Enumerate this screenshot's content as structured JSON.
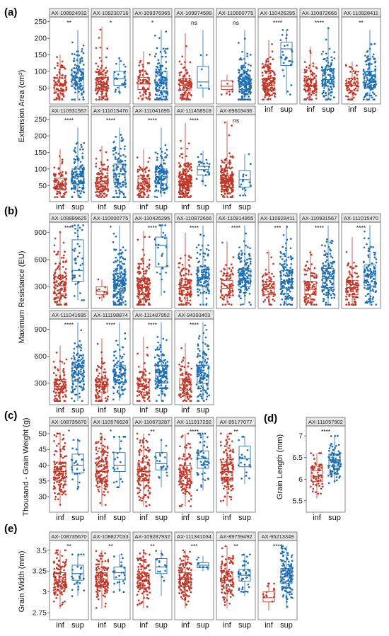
{
  "colors": {
    "inf": "#c0392b",
    "sup": "#1f6fb2",
    "strip_bg": "#e6e6e6",
    "border": "#555555"
  },
  "group_labels": [
    "inf",
    "sup"
  ],
  "chart_data": [
    {
      "panel": "(a)",
      "type": "box",
      "ylabel": "Extension  Area  (cm²)",
      "yticks": [
        50,
        100,
        150,
        200,
        250
      ],
      "ylim": [
        10,
        260
      ],
      "markers": [
        {
          "name": "AX-108924932",
          "sig": "**",
          "inf": {
            "q1": 40,
            "median": 58,
            "q3": 78,
            "n": 90,
            "min": 15,
            "max": 150
          },
          "sup": {
            "q1": 55,
            "median": 80,
            "q3": 108,
            "n": 120,
            "min": 15,
            "max": 225
          }
        },
        {
          "name": "AX-109230716",
          "sig": "*",
          "inf": {
            "q1": 42,
            "median": 60,
            "q3": 82,
            "n": 130,
            "min": 15,
            "max": 235
          },
          "sup": {
            "q1": 58,
            "median": 78,
            "q3": 100,
            "n": 25,
            "min": 30,
            "max": 140
          }
        },
        {
          "name": "AX-109376365",
          "sig": "*",
          "inf": {
            "q1": 45,
            "median": 62,
            "q3": 82,
            "n": 70,
            "min": 15,
            "max": 160
          },
          "sup": {
            "q1": 42,
            "median": 62,
            "q3": 100,
            "n": 130,
            "min": 15,
            "max": 225
          }
        },
        {
          "name": "AX-109974589",
          "sig": "ns",
          "inf": {
            "q1": 42,
            "median": 58,
            "q3": 78,
            "n": 110,
            "min": 15,
            "max": 215
          },
          "sup": {
            "q1": 50,
            "median": 68,
            "q3": 115,
            "n": 5,
            "min": 20,
            "max": 225
          }
        },
        {
          "name": "AX-110000775",
          "sig": "ns",
          "inf": {
            "q1": 45,
            "median": 55,
            "q3": 72,
            "n": 8,
            "min": 30,
            "max": 90
          },
          "sup": {
            "q1": 45,
            "median": 62,
            "q3": 85,
            "n": 180,
            "min": 15,
            "max": 225
          }
        },
        {
          "name": "AX-110426295",
          "sig": "****",
          "inf": {
            "q1": 42,
            "median": 58,
            "q3": 80,
            "n": 160,
            "min": 15,
            "max": 195
          },
          "sup": {
            "q1": 118,
            "median": 168,
            "q3": 188,
            "n": 28,
            "min": 30,
            "max": 225
          }
        },
        {
          "name": "AX-110872666",
          "sig": "****",
          "inf": {
            "q1": 42,
            "median": 58,
            "q3": 78,
            "n": 110,
            "min": 15,
            "max": 175
          },
          "sup": {
            "q1": 55,
            "median": 75,
            "q3": 105,
            "n": 120,
            "min": 15,
            "max": 235
          }
        },
        {
          "name": "AX-110928411",
          "sig": "**",
          "inf": {
            "q1": 42,
            "median": 58,
            "q3": 78,
            "n": 70,
            "min": 15,
            "max": 130
          },
          "sup": {
            "q1": 50,
            "median": 72,
            "q3": 100,
            "n": 140,
            "min": 15,
            "max": 225
          }
        },
        {
          "name": "AX-110931567",
          "sig": "****",
          "inf": {
            "q1": 38,
            "median": 52,
            "q3": 72,
            "n": 90,
            "min": 15,
            "max": 160
          },
          "sup": {
            "q1": 55,
            "median": 78,
            "q3": 100,
            "n": 140,
            "min": 15,
            "max": 225
          }
        },
        {
          "name": "AX-111015470",
          "sig": "****",
          "inf": {
            "q1": 40,
            "median": 55,
            "q3": 75,
            "n": 110,
            "min": 15,
            "max": 170
          },
          "sup": {
            "q1": 58,
            "median": 85,
            "q3": 115,
            "n": 110,
            "min": 15,
            "max": 225
          }
        },
        {
          "name": "AX-111041695",
          "sig": "****",
          "inf": {
            "q1": 40,
            "median": 55,
            "q3": 72,
            "n": 100,
            "min": 15,
            "max": 160
          },
          "sup": {
            "q1": 55,
            "median": 78,
            "q3": 100,
            "n": 130,
            "min": 15,
            "max": 225
          }
        },
        {
          "name": "AX-111458518",
          "sig": "****",
          "inf": {
            "q1": 45,
            "median": 62,
            "q3": 82,
            "n": 200,
            "min": 15,
            "max": 240
          },
          "sup": {
            "q1": 82,
            "median": 98,
            "q3": 108,
            "n": 25,
            "min": 50,
            "max": 155
          }
        },
        {
          "name": "AX-89603436",
          "sig": "ns",
          "inf": {
            "q1": 45,
            "median": 62,
            "q3": 82,
            "n": 200,
            "min": 15,
            "max": 245
          },
          "sup": {
            "q1": 45,
            "median": 68,
            "q3": 95,
            "n": 18,
            "min": 20,
            "max": 145
          }
        }
      ]
    },
    {
      "panel": "(b)",
      "type": "box",
      "ylabel": "Maximum  Resistance  (EU)",
      "yticks": [
        300,
        600,
        900
      ],
      "ylim": [
        90,
        1000
      ],
      "markers": [
        {
          "name": "AX-109999625",
          "sig": "****",
          "inf": {
            "q1": 220,
            "median": 310,
            "q3": 410,
            "n": 130,
            "min": 100,
            "max": 920
          },
          "sup": {
            "q1": 360,
            "median": 480,
            "q3": 820,
            "n": 40,
            "min": 150,
            "max": 980
          }
        },
        {
          "name": "AX-110000775",
          "sig": "*",
          "inf": {
            "q1": 210,
            "median": 250,
            "q3": 300,
            "n": 10,
            "min": 140,
            "max": 380
          },
          "sup": {
            "q1": 250,
            "median": 330,
            "q3": 450,
            "n": 190,
            "min": 100,
            "max": 980
          }
        },
        {
          "name": "AX-110426295",
          "sig": "****",
          "inf": {
            "q1": 210,
            "median": 290,
            "q3": 390,
            "n": 160,
            "min": 100,
            "max": 920
          },
          "sup": {
            "q1": 520,
            "median": 760,
            "q3": 850,
            "n": 28,
            "min": 200,
            "max": 980
          }
        },
        {
          "name": "AX-110872666",
          "sig": "****",
          "inf": {
            "q1": 210,
            "median": 290,
            "q3": 380,
            "n": 120,
            "min": 100,
            "max": 900
          },
          "sup": {
            "q1": 310,
            "median": 400,
            "q3": 520,
            "n": 120,
            "min": 100,
            "max": 980
          }
        },
        {
          "name": "AX-110914955",
          "sig": "****",
          "inf": {
            "q1": 200,
            "median": 280,
            "q3": 370,
            "n": 70,
            "min": 100,
            "max": 800
          },
          "sup": {
            "q1": 300,
            "median": 390,
            "q3": 500,
            "n": 140,
            "min": 100,
            "max": 980
          }
        },
        {
          "name": "AX-110928411",
          "sig": "***",
          "inf": {
            "q1": 210,
            "median": 280,
            "q3": 360,
            "n": 70,
            "min": 100,
            "max": 700
          },
          "sup": {
            "q1": 280,
            "median": 360,
            "q3": 480,
            "n": 140,
            "min": 100,
            "max": 980
          }
        },
        {
          "name": "AX-110931567",
          "sig": "****",
          "inf": {
            "q1": 210,
            "median": 270,
            "q3": 360,
            "n": 90,
            "min": 100,
            "max": 700
          },
          "sup": {
            "q1": 290,
            "median": 390,
            "q3": 500,
            "n": 140,
            "min": 100,
            "max": 980
          }
        },
        {
          "name": "AX-111015470",
          "sig": "****",
          "inf": {
            "q1": 210,
            "median": 290,
            "q3": 370,
            "n": 110,
            "min": 100,
            "max": 850
          },
          "sup": {
            "q1": 310,
            "median": 420,
            "q3": 540,
            "n": 110,
            "min": 100,
            "max": 980
          }
        },
        {
          "name": "AX-111041695",
          "sig": "****",
          "inf": {
            "q1": 200,
            "median": 260,
            "q3": 340,
            "n": 100,
            "min": 100,
            "max": 720
          },
          "sup": {
            "q1": 320,
            "median": 400,
            "q3": 500,
            "n": 130,
            "min": 100,
            "max": 980
          }
        },
        {
          "name": "AX-111198874",
          "sig": "****",
          "inf": {
            "q1": 200,
            "median": 260,
            "q3": 350,
            "n": 110,
            "min": 100,
            "max": 800
          },
          "sup": {
            "q1": 310,
            "median": 390,
            "q3": 500,
            "n": 110,
            "min": 100,
            "max": 980
          }
        },
        {
          "name": "AX-111487952",
          "sig": "****",
          "inf": {
            "q1": 200,
            "median": 260,
            "q3": 350,
            "n": 90,
            "min": 100,
            "max": 820
          },
          "sup": {
            "q1": 300,
            "median": 380,
            "q3": 500,
            "n": 140,
            "min": 100,
            "max": 980
          }
        },
        {
          "name": "AX-94393403",
          "sig": "****",
          "inf": {
            "q1": 220,
            "median": 280,
            "q3": 350,
            "n": 100,
            "min": 100,
            "max": 750
          },
          "sup": {
            "q1": 300,
            "median": 380,
            "q3": 500,
            "n": 130,
            "min": 100,
            "max": 980
          }
        }
      ]
    },
    {
      "panel": "(c)",
      "type": "box",
      "ylabel": "Thousand - Grain Weight (g)",
      "yticks": [
        30,
        35,
        40,
        45,
        50
      ],
      "ylim": [
        26,
        52
      ],
      "markers": [
        {
          "name": "AX-108735670",
          "sig": "*",
          "inf": {
            "q1": 35,
            "median": 38,
            "q3": 41,
            "n": 130,
            "min": 27,
            "max": 50
          },
          "sup": {
            "q1": 37.5,
            "median": 40,
            "q3": 43.5,
            "n": 25,
            "min": 32,
            "max": 48
          }
        },
        {
          "name": "AX-110576628",
          "sig": "*",
          "inf": {
            "q1": 35,
            "median": 38,
            "q3": 41,
            "n": 130,
            "min": 27,
            "max": 50
          },
          "sup": {
            "q1": 38,
            "median": 40,
            "q3": 44,
            "n": 25,
            "min": 33,
            "max": 49
          }
        },
        {
          "name": "AX-110673287",
          "sig": "**",
          "inf": {
            "q1": 35,
            "median": 38,
            "q3": 41,
            "n": 130,
            "min": 27,
            "max": 50
          },
          "sup": {
            "q1": 38.5,
            "median": 40.5,
            "q3": 44,
            "n": 20,
            "min": 33,
            "max": 48
          }
        },
        {
          "name": "AX-111917292",
          "sig": "****",
          "inf": {
            "q1": 34,
            "median": 37,
            "q3": 40,
            "n": 120,
            "min": 27,
            "max": 50
          },
          "sup": {
            "q1": 39,
            "median": 42,
            "q3": 44.5,
            "n": 50,
            "min": 32,
            "max": 50
          }
        },
        {
          "name": "AX-95177077",
          "sig": "**",
          "inf": {
            "q1": 35,
            "median": 38,
            "q3": 41,
            "n": 130,
            "min": 27,
            "max": 50
          },
          "sup": {
            "q1": 39.5,
            "median": 42,
            "q3": 46,
            "n": 18,
            "min": 34,
            "max": 49
          }
        }
      ]
    },
    {
      "panel": "(d)",
      "type": "box",
      "ylabel": "Grain  Length  (mm)",
      "yticks": [
        5.5,
        6.0,
        6.5,
        7.0
      ],
      "ylim": [
        5.3,
        7.2
      ],
      "markers": [
        {
          "name": "AX-111057902",
          "sig": "****",
          "inf": {
            "q1": 5.95,
            "median": 6.2,
            "q3": 6.3,
            "n": 60,
            "min": 5.55,
            "max": 6.6
          },
          "sup": {
            "q1": 6.3,
            "median": 6.45,
            "q3": 6.58,
            "n": 100,
            "min": 5.9,
            "max": 7.0
          }
        }
      ]
    },
    {
      "panel": "(e)",
      "type": "box",
      "ylabel": "Grain Width  (mm)",
      "yticks": [
        2.75,
        3.0,
        3.25,
        3.5
      ],
      "ylim": [
        2.7,
        3.6
      ],
      "markers": [
        {
          "name": "AX-108735670",
          "sig": "**",
          "inf": {
            "q1": 3.06,
            "median": 3.15,
            "q3": 3.23,
            "n": 130,
            "min": 2.8,
            "max": 3.5
          },
          "sup": {
            "q1": 3.14,
            "median": 3.22,
            "q3": 3.32,
            "n": 25,
            "min": 2.95,
            "max": 3.45
          }
        },
        {
          "name": "AX-108827033",
          "sig": "**",
          "inf": {
            "q1": 3.06,
            "median": 3.15,
            "q3": 3.23,
            "n": 130,
            "min": 2.8,
            "max": 3.5
          },
          "sup": {
            "q1": 3.15,
            "median": 3.23,
            "q3": 3.3,
            "n": 25,
            "min": 3.0,
            "max": 3.45
          }
        },
        {
          "name": "AX-109287932",
          "sig": "**",
          "inf": {
            "q1": 3.05,
            "median": 3.14,
            "q3": 3.22,
            "n": 130,
            "min": 2.8,
            "max": 3.5
          },
          "sup": {
            "q1": 3.22,
            "median": 3.3,
            "q3": 3.4,
            "n": 15,
            "min": 2.95,
            "max": 3.5
          }
        },
        {
          "name": "AX-111341034",
          "sig": "***",
          "inf": {
            "q1": 3.06,
            "median": 3.15,
            "q3": 3.23,
            "n": 140,
            "min": 2.8,
            "max": 3.5
          },
          "sup": {
            "q1": 3.29,
            "median": 3.32,
            "q3": 3.35,
            "n": 8,
            "min": 3.25,
            "max": 3.43
          }
        },
        {
          "name": "AX-89759492",
          "sig": "**",
          "inf": {
            "q1": 3.06,
            "median": 3.14,
            "q3": 3.24,
            "n": 110,
            "min": 2.8,
            "max": 3.55
          },
          "sup": {
            "q1": 3.13,
            "median": 3.2,
            "q3": 3.27,
            "n": 40,
            "min": 2.95,
            "max": 3.45
          }
        },
        {
          "name": "AX-95213349",
          "sig": "****",
          "inf": {
            "q1": 2.88,
            "median": 2.93,
            "q3": 3.0,
            "n": 15,
            "min": 2.78,
            "max": 3.1
          },
          "sup": {
            "q1": 3.1,
            "median": 3.18,
            "q3": 3.28,
            "n": 130,
            "min": 2.8,
            "max": 3.55
          }
        }
      ]
    }
  ]
}
